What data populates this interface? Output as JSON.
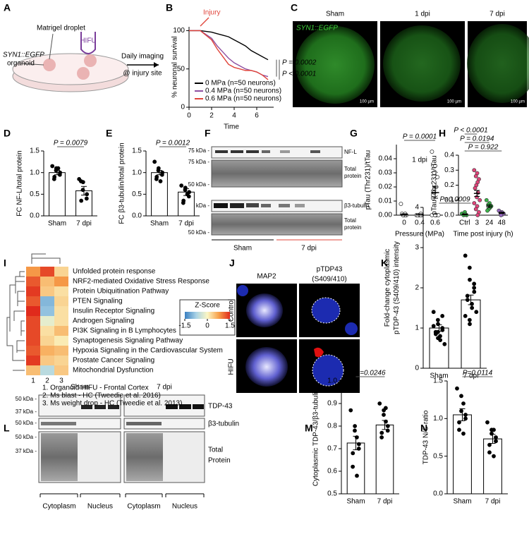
{
  "panel_letters": [
    "A",
    "B",
    "C",
    "D",
    "E",
    "F",
    "G",
    "H",
    "I",
    "J",
    "K",
    "L",
    "M",
    "N"
  ],
  "panel_a": {
    "droplet": "Matrigel droplet",
    "hifu": "HIFU",
    "organoid": [
      "SYN1::EGFP",
      "organoid"
    ],
    "imaging": [
      "Daily imaging",
      "@ injury site"
    ]
  },
  "panel_c": {
    "titles": [
      "Sham",
      "1 dpi",
      "7 dpi"
    ],
    "channel": "SYN1::EGFP",
    "scale_bar": "100 µm"
  },
  "panel_f": {
    "markers": [
      "75 kDa -",
      "75 kDa -",
      "50 kDa -",
      "50 kDa -",
      "50 kDa -"
    ],
    "labels": [
      "NF-L",
      "Total",
      "protein",
      "β3-tubulin",
      "Total",
      "protein"
    ],
    "groups": [
      "Sham",
      "7 dpi"
    ]
  },
  "panel_j": {
    "columns": [
      "MAP2",
      "pTDP43",
      "(S409/410)"
    ],
    "rows": [
      "Control",
      "HIFU"
    ]
  },
  "panel_l": {
    "groups": [
      "Sham",
      "7 dpi"
    ],
    "markers": [
      "50 kDa -",
      "37 kDa -",
      "50 kDa -",
      "50 kDa -",
      "37 kDa -"
    ],
    "labels": [
      "TDP-43",
      "β3-tubulin",
      "Total",
      "Protein"
    ],
    "fractions": [
      "Cytoplasm",
      "Nucleus",
      "Cytoplasm",
      "Nucleus"
    ]
  },
  "chart_data": [
    {
      "type": "line",
      "xlabel": "Time",
      "ylabel": "% neuronal survival",
      "x": [
        0,
        1,
        2,
        2.5,
        3,
        3.5,
        4,
        4.5,
        5,
        5.5,
        6,
        6.5,
        7
      ],
      "xlim": [
        0,
        7.5
      ],
      "xticks": [
        0,
        2,
        4,
        6
      ],
      "ylim": [
        0,
        105
      ],
      "yticks": [
        0,
        50,
        100
      ],
      "series": [
        {
          "name": "0 MPa (n=50 neurons)",
          "color": "#000000",
          "values": [
            100,
            100,
            98,
            96,
            94,
            92,
            88,
            84,
            80,
            74,
            70,
            66,
            62
          ]
        },
        {
          "name": "0.4 MPa (n=50 neurons)",
          "color": "#8e4fa0",
          "values": [
            100,
            100,
            90,
            80,
            72,
            64,
            58,
            54,
            50,
            48,
            46,
            42,
            40
          ]
        },
        {
          "name": "0.6 MPa (n=50 neurons)",
          "color": "#e0443a",
          "values": [
            100,
            100,
            88,
            76,
            66,
            56,
            52,
            50,
            48,
            48,
            46,
            42,
            36
          ]
        }
      ],
      "event_label": "Injury",
      "event_x": 1,
      "annotations": [
        "P = 0.0002",
        "P < 0.0001"
      ]
    },
    {
      "type": "bar",
      "ylabel": "FC NF-L/total protein",
      "categories": [
        "Sham",
        "7 dpi"
      ],
      "values": [
        1.0,
        0.58
      ],
      "errors": [
        0.05,
        0.1
      ],
      "points": [
        [
          1.15,
          1.1,
          1.05,
          1.0,
          0.95,
          0.9,
          0.85,
          1.1
        ],
        [
          0.85,
          0.78,
          0.6,
          0.5,
          0.4,
          0.35,
          0.8
        ]
      ],
      "ylim": [
        0,
        1.5
      ],
      "yticks": [
        {
          "value": 0,
          "label": "0.0"
        },
        0.5,
        {
          "value": 1,
          "label": "1.0"
        },
        1.5
      ],
      "annotations": [
        "P = 0.0079"
      ]
    },
    {
      "type": "bar",
      "ylabel": "FC β3-tubulin/total protein",
      "categories": [
        "Sham",
        "7 dpi"
      ],
      "values": [
        1.0,
        0.55
      ],
      "errors": [
        0.05,
        0.08
      ],
      "points": [
        [
          1.25,
          1.1,
          1.05,
          1.0,
          0.95,
          0.9,
          0.85,
          0.8
        ],
        [
          0.7,
          0.65,
          0.6,
          0.55,
          0.45,
          0.35,
          0.3,
          0.5
        ]
      ],
      "ylim": [
        0,
        1.5
      ],
      "yticks": [
        {
          "value": 0,
          "label": "0.0"
        },
        0.5,
        {
          "value": 1,
          "label": "1.0"
        },
        1.5
      ],
      "annotations": [
        "P = 0.0012"
      ]
    },
    {
      "type": "scatter",
      "ylabel": "pTau (Thr231)/tTau",
      "xlabel": "Pressure (MPa)",
      "note": "1 dpi",
      "categories": [
        "0",
        "0.4",
        "0.6"
      ],
      "values": [
        0.0005,
        0.0003,
        0.016
      ],
      "errors": [
        0.0005,
        0.0002,
        0.004
      ],
      "points": [
        [
          0.008,
          0,
          0,
          0,
          0,
          0,
          0.001,
          0.001
        ],
        [
          0,
          0,
          0,
          0,
          0.001,
          0,
          0,
          0
        ],
        [
          0.045,
          0.035,
          0.03,
          0.027,
          0.02,
          0.016,
          0.012,
          0,
          0,
          0,
          0,
          0
        ]
      ],
      "ylim": [
        0,
        0.05
      ],
      "yticks": [
        {
          "value": 0,
          "label": "0.00"
        },
        0.01,
        0.02,
        0.03,
        0.04
      ],
      "annotations": [
        "P = 0.0001"
      ]
    },
    {
      "type": "scatter",
      "ylabel": "pTau (Thr231)/tTau",
      "xlabel": "Time post injury (h)",
      "categories": [
        "Ctrl",
        "3",
        "24",
        "48"
      ],
      "values": [
        0.005,
        0.145,
        0.06,
        0.015
      ],
      "errors": [
        0.003,
        0.02,
        0.01,
        0.004
      ],
      "points": [
        [
          0.01,
          0.02,
          0,
          0,
          0.005
        ],
        [
          0.3,
          0.28,
          0.26,
          0.24,
          0.22,
          0.2,
          0.18,
          0.15,
          0.12,
          0.1,
          0.08,
          0.06,
          0.04,
          0.02,
          0
        ],
        [
          0.1,
          0.08,
          0.07,
          0.06,
          0.05,
          0.04,
          0.03
        ],
        [
          0.03,
          0.02,
          0.015,
          0.01,
          0.005,
          0
        ]
      ],
      "point_colors": [
        "#3bb54a",
        "#e0457b",
        "#3bb54a",
        "#9467bd"
      ],
      "ylim": [
        0,
        0.4
      ],
      "yticks": [
        {
          "value": 0,
          "label": "0.0"
        },
        0.1,
        0.2,
        0.3,
        0.4
      ],
      "annotations": [
        "P < 0.0001",
        "P = 0.0194",
        "P = 0.922"
      ]
    },
    {
      "type": "heatmap",
      "rows": [
        "Unfolded protein response",
        "NRF2-mediated Oxidative Stress Response",
        "Protein Ubiquitination Pathway",
        "PTEN Signaling",
        "Insulin Receptor Signaling",
        "Androgen Signaling",
        "PI3K Signaling in B Lymphocytes",
        "Synaptogenesis Signaling Pathway",
        "Hypoxia Signaling in the Cardiovascular System",
        "Prostate Cancer Signaling",
        "Mitochondrial Dysfunction"
      ],
      "columns": [
        "1",
        "2",
        "3"
      ],
      "values": [
        [
          0.8,
          1.3,
          0.3
        ],
        [
          1.2,
          0.5,
          0.8
        ],
        [
          1.4,
          0.4,
          0.2
        ],
        [
          1.2,
          -1.0,
          0.3
        ],
        [
          1.5,
          -0.9,
          0.2
        ],
        [
          1.3,
          -0.2,
          0.2
        ],
        [
          1.3,
          0.2,
          0.5
        ],
        [
          1.3,
          0.3,
          0.1
        ],
        [
          1.2,
          0.6,
          0.5
        ],
        [
          1.4,
          0.4,
          0.3
        ],
        [
          0.5,
          -0.6,
          0.4
        ]
      ],
      "zlim": [
        -1.5,
        1.5
      ],
      "zticks": [
        -1.5,
        0,
        1.5
      ],
      "colorscale": [
        "#3a7fc1",
        "#a9d3e6",
        "#fbf6c4",
        "#f7a04a",
        "#e02a1c"
      ],
      "legend_title": "Z-Score",
      "notes": [
        "1. Organoid HIFU - Frontal Cortex",
        "2. Ms blast - HC (Tweedie et al. 2016)",
        "3. Ms weight drop - HC (Tweedie et al. 2013)"
      ]
    },
    {
      "type": "bar",
      "ylabel": [
        "Fold-change cytoplasmic",
        "pTDP-43 (S409/410) intensity"
      ],
      "categories": [
        "Sham",
        "7 dpi"
      ],
      "values": [
        1.0,
        1.7
      ],
      "errors": [
        0.08,
        0.12
      ],
      "points": [
        [
          1.4,
          1.2,
          1.1,
          1.0,
          0.95,
          0.9,
          0.85,
          0.8,
          0.7,
          0.6,
          1.05,
          0.9,
          0.75,
          1.3
        ],
        [
          2.8,
          2.5,
          2.2,
          2.0,
          1.9,
          1.8,
          1.7,
          1.6,
          1.5,
          1.4,
          1.3,
          1.2,
          1.1,
          2.1
        ]
      ],
      "ylim": [
        0,
        4
      ],
      "yticks": [
        0,
        1,
        2,
        3,
        4
      ],
      "annotations": [
        "P=0.0009"
      ]
    },
    {
      "type": "bar",
      "ylabel": "Cytoplasmic TDP-43/β3-tubulin",
      "categories": [
        "Sham",
        "7 dpi"
      ],
      "values": [
        0.725,
        0.805
      ],
      "errors": [
        0.03,
        0.02
      ],
      "points": [
        [
          0.87,
          0.8,
          0.78,
          0.72,
          0.7,
          0.68,
          0.62,
          0.58,
          0.75
        ],
        [
          0.9,
          0.87,
          0.85,
          0.8,
          0.78,
          0.77,
          0.75,
          0.82,
          0.88
        ]
      ],
      "ylim": [
        0.5,
        1.0
      ],
      "yticks": [
        0.5,
        0.6,
        0.7,
        0.8,
        0.9,
        {
          "value": 1,
          "label": "1.0"
        }
      ],
      "annotations": [
        "P=0.0246"
      ]
    },
    {
      "type": "bar",
      "ylabel": "TDP-43 N/C ratio",
      "categories": [
        "Sham",
        "7 dpi"
      ],
      "values": [
        1.05,
        0.73
      ],
      "errors": [
        0.08,
        0.06
      ],
      "points": [
        [
          1.4,
          1.3,
          1.1,
          1.05,
          1.0,
          0.95,
          0.85,
          0.8,
          1.2
        ],
        [
          0.95,
          0.85,
          0.8,
          0.75,
          0.7,
          0.65,
          0.55,
          0.5,
          0.85
        ]
      ],
      "ylim": [
        0,
        1.5
      ],
      "yticks": [
        {
          "value": 0,
          "label": "0.0"
        },
        0.5,
        {
          "value": 1,
          "label": "1.0"
        },
        1.5
      ],
      "annotations": [
        "P=0.0114"
      ]
    }
  ]
}
